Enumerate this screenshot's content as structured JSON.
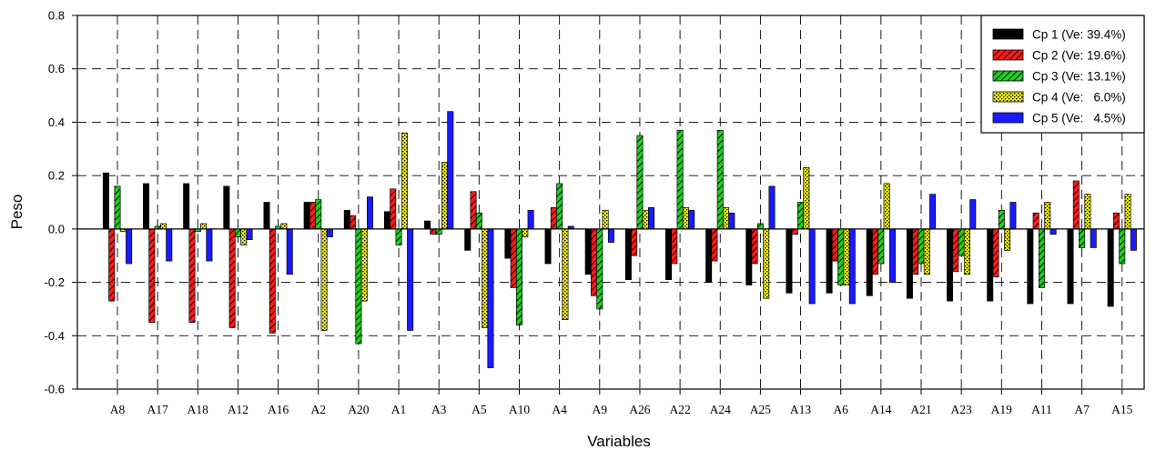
{
  "chart_data": {
    "type": "bar",
    "xlabel": "Variables",
    "ylabel": "Peso",
    "ylim": [
      -0.6,
      0.8
    ],
    "yticks": [
      "-0.6",
      "-0.4",
      "-0.2",
      "0.0",
      "0.2",
      "0.4",
      "0.6",
      "0.8"
    ],
    "grid": true,
    "legend_position": "top-right",
    "categories": [
      "A8",
      "A17",
      "A18",
      "A12",
      "A16",
      "A2",
      "A20",
      "A1",
      "A3",
      "A5",
      "A10",
      "A4",
      "A9",
      "A26",
      "A22",
      "A24",
      "A25",
      "A13",
      "A6",
      "A14",
      "A21",
      "A23",
      "A19",
      "A11",
      "A7",
      "A15"
    ],
    "series": [
      {
        "name": "Cp 1 (Ve: 39.4%)",
        "color": "#000000",
        "pattern": "solid",
        "values": [
          0.21,
          0.17,
          0.17,
          0.16,
          0.1,
          0.1,
          0.07,
          0.065,
          0.03,
          -0.08,
          -0.11,
          -0.13,
          -0.17,
          -0.19,
          -0.19,
          -0.2,
          -0.21,
          -0.24,
          -0.24,
          -0.25,
          -0.26,
          -0.27,
          -0.27,
          -0.28,
          -0.28,
          -0.29
        ]
      },
      {
        "name": "Cp 2 (Ve: 19.6%)",
        "color": "#ff1a1a",
        "pattern": "hatch",
        "values": [
          -0.27,
          -0.35,
          -0.35,
          -0.37,
          -0.39,
          0.1,
          0.05,
          0.15,
          -0.02,
          0.14,
          -0.22,
          0.08,
          -0.25,
          -0.1,
          -0.13,
          -0.12,
          -0.13,
          -0.02,
          -0.12,
          -0.17,
          -0.17,
          -0.16,
          -0.18,
          0.06,
          0.18,
          0.06
        ]
      },
      {
        "name": "Cp 3 (Ve: 13.1%)",
        "color": "#1fcf1f",
        "pattern": "hatch",
        "values": [
          0.16,
          0.01,
          -0.01,
          -0.03,
          0.01,
          0.11,
          -0.43,
          -0.06,
          -0.02,
          0.06,
          -0.36,
          0.17,
          -0.3,
          0.35,
          0.37,
          0.37,
          0.02,
          0.1,
          -0.21,
          -0.13,
          -0.13,
          -0.1,
          0.07,
          -0.22,
          -0.07,
          -0.13
        ]
      },
      {
        "name": "Cp 4 (Ve:   6.0%)",
        "color": "#f2f20d",
        "pattern": "dots",
        "values": [
          -0.01,
          0.02,
          0.02,
          -0.06,
          0.02,
          -0.38,
          -0.27,
          0.36,
          0.25,
          -0.37,
          -0.03,
          -0.34,
          0.07,
          0.07,
          0.08,
          0.08,
          -0.26,
          0.23,
          -0.21,
          0.17,
          -0.17,
          -0.17,
          -0.08,
          0.1,
          0.13,
          0.13
        ]
      },
      {
        "name": "Cp 5 (Ve:   4.5%)",
        "color": "#1a1aff",
        "pattern": "solid",
        "values": [
          -0.13,
          -0.12,
          -0.12,
          -0.04,
          -0.17,
          -0.03,
          0.12,
          -0.38,
          0.44,
          -0.52,
          0.07,
          0.01,
          -0.05,
          0.08,
          0.07,
          0.06,
          0.16,
          -0.28,
          -0.28,
          -0.2,
          0.13,
          0.11,
          0.1,
          -0.02,
          -0.07,
          -0.08
        ]
      }
    ]
  }
}
